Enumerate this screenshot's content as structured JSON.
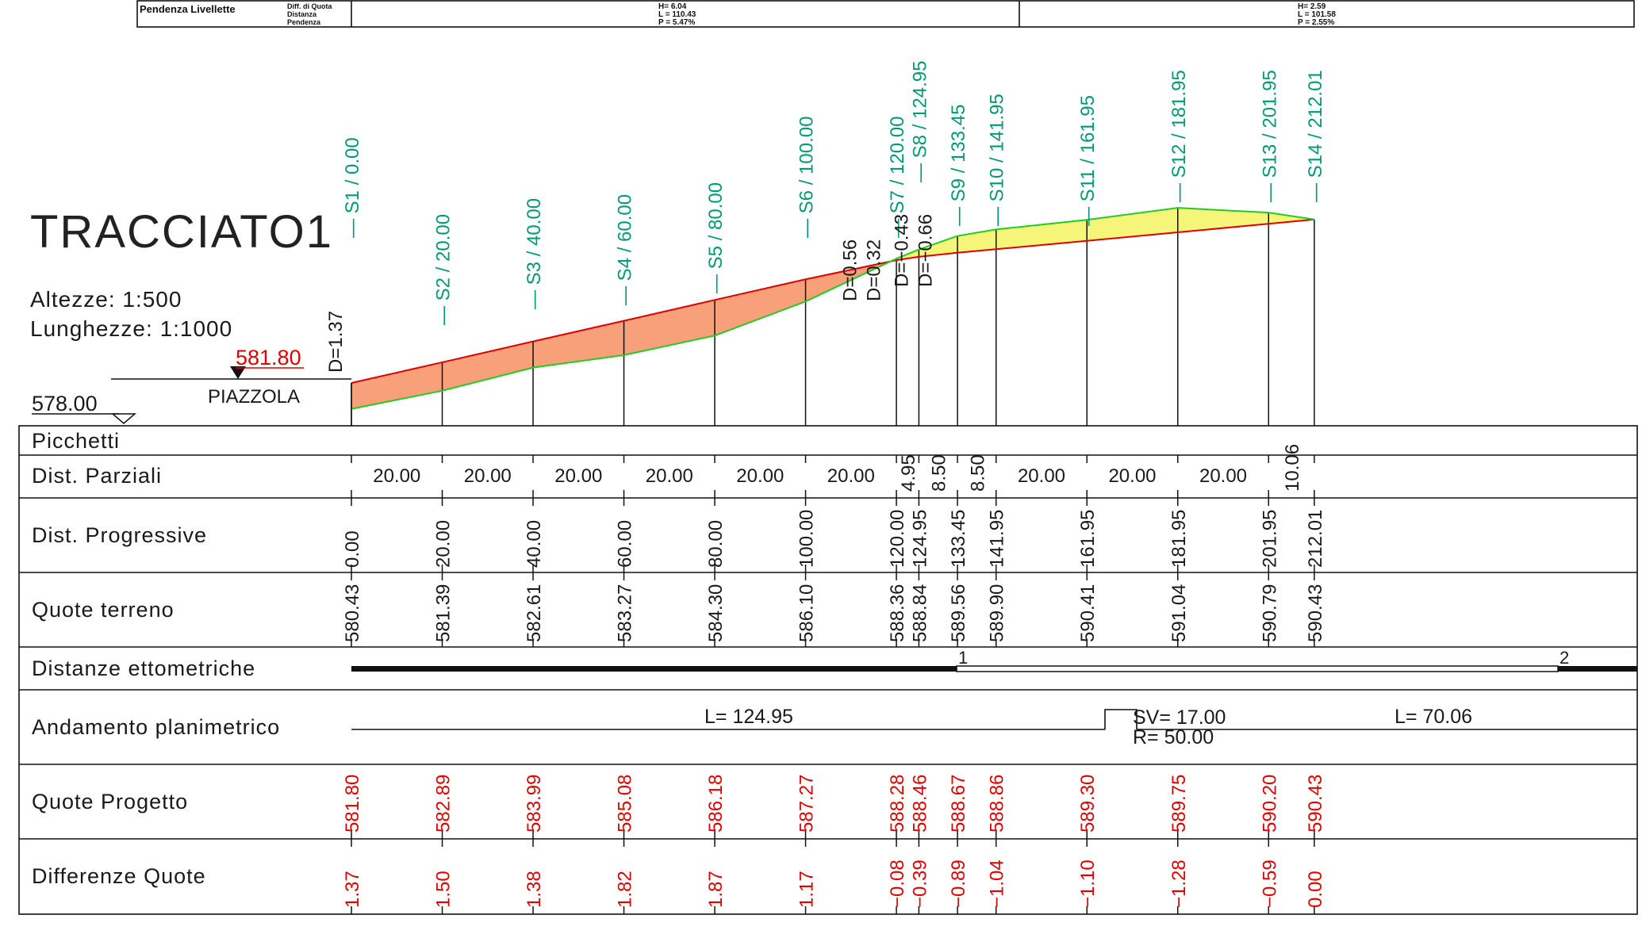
{
  "title": "TRACCIATO1",
  "scales": {
    "heights": "Altezze:   1:500",
    "lengths": "Lunghezze:  1:1000"
  },
  "reference": {
    "start_elevation": "581.80",
    "datum": "578.00",
    "site": "PIAZZOLA"
  },
  "header": {
    "label": "Pendenza Livellette",
    "sub_labels": [
      "Diff. di Quota",
      "Distanza",
      "Pendenza"
    ],
    "slopes": [
      {
        "h": "H= 6.04",
        "l": "L = 110.43",
        "p": "P = 5.47%"
      },
      {
        "h": "H= 2.59",
        "l": "L = 101.58",
        "p": "P = 2.55%"
      }
    ]
  },
  "colors": {
    "cut": "#f7a07a",
    "fill": "#f5f57a",
    "terrain": "#22cc22",
    "project": "#e00000",
    "station_label": "#009a73"
  },
  "stations": [
    {
      "name": "S1",
      "prog": 0.0,
      "terrain": 580.43,
      "project": 581.8,
      "diff": "1.37",
      "label": "S1 / 0.00",
      "prog_label": "0.00",
      "terrain_label": "580.43",
      "project_label": "581.80"
    },
    {
      "name": "S2",
      "prog": 20.0,
      "terrain": 581.39,
      "project": 582.89,
      "diff": "1.50",
      "label": "S2 / 20.00",
      "prog_label": "20.00",
      "terrain_label": "581.39",
      "project_label": "582.89"
    },
    {
      "name": "S3",
      "prog": 40.0,
      "terrain": 582.61,
      "project": 583.99,
      "diff": "1.38",
      "label": "S3 / 40.00",
      "prog_label": "40.00",
      "terrain_label": "582.61",
      "project_label": "583.99"
    },
    {
      "name": "S4",
      "prog": 60.0,
      "terrain": 583.27,
      "project": 585.08,
      "diff": "1.82",
      "label": "S4 / 60.00",
      "prog_label": "60.00",
      "terrain_label": "583.27",
      "project_label": "585.08"
    },
    {
      "name": "S5",
      "prog": 80.0,
      "terrain": 584.3,
      "project": 586.18,
      "diff": "1.87",
      "label": "S5 / 80.00",
      "prog_label": "80.00",
      "terrain_label": "584.30",
      "project_label": "586.18"
    },
    {
      "name": "S6",
      "prog": 100.0,
      "terrain": 586.1,
      "project": 587.27,
      "diff": "1.17",
      "label": "S6 / 100.00",
      "prog_label": "100.00",
      "terrain_label": "586.10",
      "project_label": "587.27"
    },
    {
      "name": "S7",
      "prog": 120.0,
      "terrain": 588.36,
      "project": 588.28,
      "diff": "−0.08",
      "label": "S7 / 120.00",
      "prog_label": "120.00",
      "terrain_label": "588.36",
      "project_label": "588.28"
    },
    {
      "name": "S8",
      "prog": 124.95,
      "terrain": 588.84,
      "project": 588.46,
      "diff": "−0.39",
      "label": "S8 / 124.95",
      "prog_label": "124.95",
      "terrain_label": "588.84",
      "project_label": "588.46"
    },
    {
      "name": "S9",
      "prog": 133.45,
      "terrain": 589.56,
      "project": 588.67,
      "diff": "−0.89",
      "label": "S9 / 133.45",
      "prog_label": "133.45",
      "terrain_label": "589.56",
      "project_label": "588.67"
    },
    {
      "name": "S10",
      "prog": 141.95,
      "terrain": 589.9,
      "project": 588.86,
      "diff": "−1.04",
      "label": "S10 / 141.95",
      "prog_label": "141.95",
      "terrain_label": "589.90",
      "project_label": "588.86"
    },
    {
      "name": "S11",
      "prog": 161.95,
      "terrain": 590.41,
      "project": 589.3,
      "diff": "−1.10",
      "label": "S11 / 161.95",
      "prog_label": "161.95",
      "terrain_label": "590.41",
      "project_label": "589.30"
    },
    {
      "name": "S12",
      "prog": 181.95,
      "terrain": 591.04,
      "project": 589.75,
      "diff": "−1.28",
      "label": "S12 / 181.95",
      "prog_label": "181.95",
      "terrain_label": "591.04",
      "project_label": "589.75"
    },
    {
      "name": "S13",
      "prog": 201.95,
      "terrain": 590.79,
      "project": 590.2,
      "diff": "−0.59",
      "label": "S13 / 201.95",
      "prog_label": "201.95",
      "terrain_label": "590.79",
      "project_label": "590.20"
    },
    {
      "name": "S14",
      "prog": 212.01,
      "terrain": 590.43,
      "project": 590.43,
      "diff": "0.00",
      "label": "S14 / 212.01",
      "prog_label": "212.01",
      "terrain_label": "590.43",
      "project_label": "590.43"
    }
  ],
  "d_labels": [
    "D=1.37",
    "D=0.56",
    "D=0.32",
    "D=−0.43",
    "D=−0.66"
  ],
  "partials": [
    "20.00",
    "20.00",
    "20.00",
    "20.00",
    "20.00",
    "20.00",
    "4.95",
    "8.50",
    "8.50",
    "20.00",
    "20.00",
    "20.00",
    "10.06"
  ],
  "rows": {
    "picchetti": "Picchetti",
    "dist_parziali": "Dist. Parziali",
    "dist_progressive": "Dist. Progressive",
    "quote_terreno": "Quote terreno",
    "distanze_ettometriche": "Distanze ettometriche",
    "andamento_planimetrico": "Andamento planimetrico",
    "quote_progetto": "Quote Progetto",
    "differenze_quote": "Differenze Quote"
  },
  "hectometric_marks": [
    "1",
    "2"
  ],
  "planimetric": {
    "straight1": "L= 124.95",
    "curve_sv": "SV= 17.00",
    "curve_r": "R= 50.00",
    "straight2": "L= 70.06"
  }
}
